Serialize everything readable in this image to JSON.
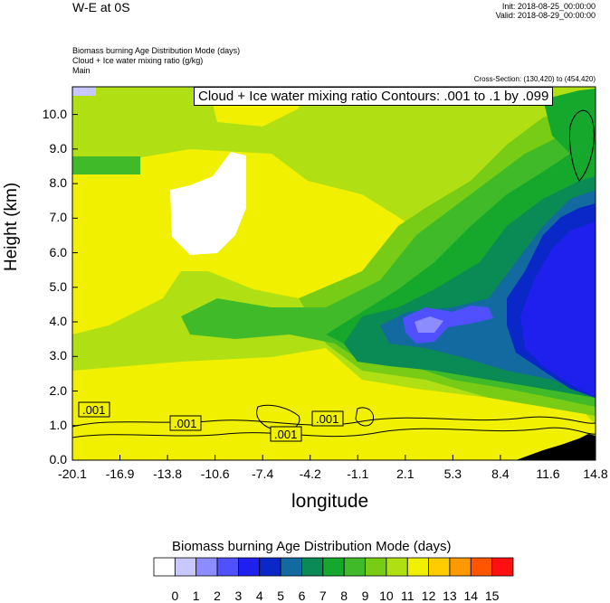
{
  "header": {
    "title": "W-E at 0S",
    "init": "Init: 2018-08-25_00:00:00",
    "valid": "Valid: 2018-08-29_00:00:00",
    "fields": [
      "Biomass burning Age Distribution Mode    (days)",
      "Cloud + Ice water mixing ratio    (g/kg)",
      "Main"
    ],
    "cross_section": "Cross-Section: (130,420) to (454,420)"
  },
  "chart_data": {
    "type": "heatmap",
    "title": "W-E at 0S",
    "xlabel": "longitude",
    "ylabel": "Height (km)",
    "x_ticks": [
      "-20.1",
      "-16.9",
      "-13.8",
      "-10.6",
      "-7.4",
      "-4.2",
      "-1.1",
      "2.1",
      "5.3",
      "8.4",
      "11.6",
      "14.8"
    ],
    "x_range": [
      -20.1,
      14.8
    ],
    "y_ticks": [
      "0.0",
      "1.0",
      "2.0",
      "3.0",
      "4.0",
      "5.0",
      "6.0",
      "7.0",
      "8.0",
      "9.0",
      "10.0"
    ],
    "y_range": [
      0,
      10.8
    ],
    "contour_label": "Cloud + Ice water mixing ratio Contours: .001 to .1 by .099",
    "contour_values": [
      ".001",
      ".001",
      ".001",
      ".001"
    ],
    "colorbar": {
      "title": "Biomass burning Age Distribution Mode  (days)",
      "labels": [
        "0",
        "1",
        "2",
        "3",
        "4",
        "5",
        "6",
        "7",
        "8",
        "9",
        "10",
        "11",
        "12",
        "13",
        "14",
        "15"
      ],
      "colors": [
        "#ffffff",
        "#c8c8ff",
        "#8c8cff",
        "#5050ff",
        "#2020ee",
        "#0a28c8",
        "#126aa0",
        "#0a8a55",
        "#16a82c",
        "#40ba28",
        "#78cc16",
        "#b0e014",
        "#f0f000",
        "#ffcc00",
        "#ff9900",
        "#ff5500",
        "#ff1010"
      ]
    }
  }
}
